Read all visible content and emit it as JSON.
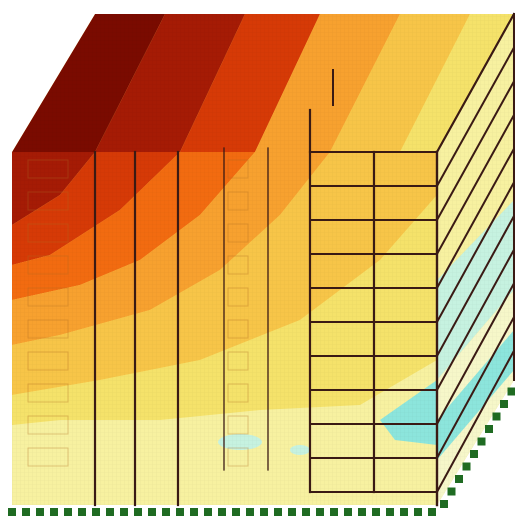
{
  "figure": {
    "subject": "building-frame-contour-model",
    "palette": {
      "dark_red": "#7a0b00",
      "red": "#a51b05",
      "red_orange": "#d63a06",
      "orange": "#f26b10",
      "orange_light": "#f7a12f",
      "amber": "#f7c548",
      "yellow": "#f5e26a",
      "pale_yellow": "#f7f1a0",
      "cream": "#f6f7c9",
      "pale_mint": "#e5f6d6",
      "mint": "#c6f2e0",
      "cyan": "#8ce5dc",
      "frame": "#3a1a14",
      "support": "#1f6b22"
    },
    "floors": 10,
    "frame_bays_front": 2,
    "interior_columns": 5
  }
}
